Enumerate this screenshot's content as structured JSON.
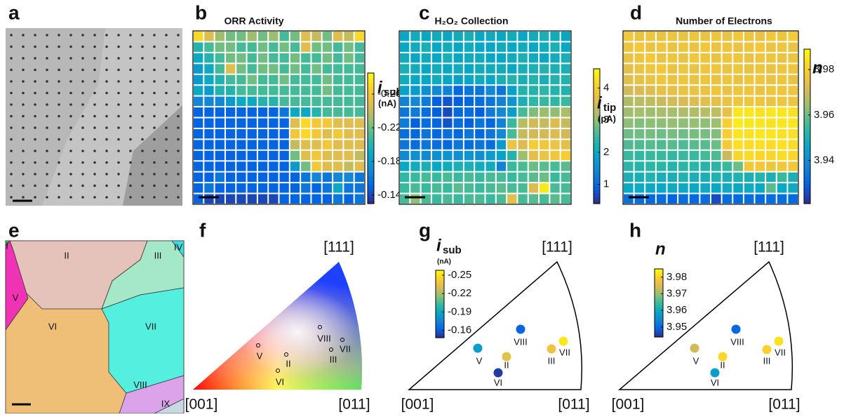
{
  "panel_labels": [
    "a",
    "b",
    "c",
    "d",
    "e",
    "f",
    "g",
    "h"
  ],
  "grain_map": {
    "labels": [
      "I",
      "II",
      "III",
      "IV",
      "V",
      "VI",
      "VII",
      "VIII",
      "IX"
    ]
  },
  "ipf_map": {
    "corners": [
      "[001]",
      "[011]",
      "[111]"
    ],
    "labels": [
      "V",
      "II",
      "VI",
      "VIII",
      "III",
      "VII"
    ]
  },
  "chart_data": [
    {
      "type": "heatmap",
      "title": "ORR Activity",
      "colorbar_symbol": "i",
      "colorbar_subscript": "sub",
      "colorbar_unit": "(nA)",
      "colormap": "parula",
      "clim": [
        -0.13,
        -0.285
      ],
      "cticks": [
        -0.26,
        -0.22,
        -0.18,
        -0.14
      ],
      "values": [
        [
          -0.27,
          -0.25,
          -0.23,
          -0.22,
          -0.22,
          -0.23,
          -0.22,
          -0.23,
          -0.21,
          -0.22,
          -0.25,
          -0.24,
          -0.22,
          -0.25,
          -0.24,
          -0.27
        ],
        [
          -0.2,
          -0.21,
          -0.22,
          -0.22,
          -0.21,
          -0.21,
          -0.22,
          -0.21,
          -0.22,
          -0.21,
          -0.25,
          -0.22,
          -0.22,
          -0.21,
          -0.22,
          -0.21
        ],
        [
          -0.19,
          -0.2,
          -0.21,
          -0.22,
          -0.22,
          -0.21,
          -0.22,
          -0.21,
          -0.21,
          -0.22,
          -0.21,
          -0.21,
          -0.22,
          -0.21,
          -0.22,
          -0.21
        ],
        [
          -0.18,
          -0.19,
          -0.21,
          -0.25,
          -0.22,
          -0.21,
          -0.22,
          -0.22,
          -0.21,
          -0.22,
          -0.21,
          -0.22,
          -0.21,
          -0.21,
          -0.21,
          -0.21
        ],
        [
          -0.18,
          -0.19,
          -0.2,
          -0.21,
          -0.21,
          -0.22,
          -0.21,
          -0.21,
          -0.22,
          -0.21,
          -0.21,
          -0.21,
          -0.22,
          -0.21,
          -0.21,
          -0.21
        ],
        [
          -0.19,
          -0.18,
          -0.2,
          -0.2,
          -0.21,
          -0.21,
          -0.21,
          -0.21,
          -0.21,
          -0.21,
          -0.21,
          -0.21,
          -0.22,
          -0.21,
          -0.21,
          -0.21
        ],
        [
          -0.17,
          -0.17,
          -0.17,
          -0.18,
          -0.19,
          -0.19,
          -0.2,
          -0.2,
          -0.21,
          -0.21,
          -0.21,
          -0.21,
          -0.21,
          -0.21,
          -0.21,
          -0.21
        ],
        [
          -0.15,
          -0.15,
          -0.15,
          -0.15,
          -0.15,
          -0.15,
          -0.15,
          -0.15,
          -0.16,
          -0.19,
          -0.19,
          -0.2,
          -0.21,
          -0.21,
          -0.21,
          -0.21
        ],
        [
          -0.15,
          -0.15,
          -0.15,
          -0.15,
          -0.15,
          -0.15,
          -0.15,
          -0.15,
          -0.15,
          -0.25,
          -0.27,
          -0.26,
          -0.26,
          -0.25,
          -0.25,
          -0.25
        ],
        [
          -0.15,
          -0.15,
          -0.15,
          -0.15,
          -0.15,
          -0.15,
          -0.15,
          -0.15,
          -0.15,
          -0.26,
          -0.27,
          -0.26,
          -0.25,
          -0.26,
          -0.25,
          -0.25
        ],
        [
          -0.15,
          -0.15,
          -0.15,
          -0.15,
          -0.15,
          -0.15,
          -0.15,
          -0.15,
          -0.15,
          -0.24,
          -0.25,
          -0.25,
          -0.26,
          -0.25,
          -0.25,
          -0.25
        ],
        [
          -0.15,
          -0.15,
          -0.15,
          -0.15,
          -0.15,
          -0.15,
          -0.15,
          -0.15,
          -0.15,
          -0.22,
          -0.25,
          -0.26,
          -0.25,
          -0.25,
          -0.25,
          -0.24
        ],
        [
          -0.15,
          -0.15,
          -0.15,
          -0.15,
          -0.15,
          -0.15,
          -0.15,
          -0.15,
          -0.15,
          -0.18,
          -0.22,
          -0.26,
          -0.25,
          -0.25,
          -0.24,
          -0.25
        ],
        [
          -0.15,
          -0.15,
          -0.16,
          -0.15,
          -0.15,
          -0.15,
          -0.15,
          -0.15,
          -0.15,
          -0.15,
          -0.16,
          -0.17,
          -0.16,
          -0.17,
          -0.17,
          -0.16
        ],
        [
          -0.15,
          -0.16,
          -0.15,
          -0.15,
          -0.15,
          -0.15,
          -0.15,
          -0.15,
          -0.15,
          -0.15,
          -0.16,
          -0.15,
          -0.16,
          -0.19,
          -0.16,
          -0.16
        ],
        [
          -0.15,
          -0.14,
          -0.14,
          -0.14,
          -0.14,
          -0.14,
          -0.14,
          -0.14,
          -0.15,
          -0.15,
          -0.15,
          -0.15,
          -0.15,
          -0.16,
          -0.15,
          -0.16
        ]
      ]
    },
    {
      "type": "heatmap",
      "title": "H₂O₂ Collection",
      "colorbar_symbol": "i",
      "colorbar_subscript": "tip",
      "colorbar_unit": "(pA)",
      "colormap": "parula",
      "clim": [
        0.4,
        4.6
      ],
      "cticks": [
        1,
        2,
        3,
        4
      ],
      "values": [
        [
          2.0,
          2.1,
          2.0,
          2.1,
          2.0,
          2.1,
          2.2,
          2.0,
          2.1,
          2.0,
          2.1,
          2.0,
          2.1,
          2.2,
          2.1,
          2.0
        ],
        [
          2.0,
          2.1,
          2.2,
          2.0,
          2.1,
          2.0,
          2.1,
          2.0,
          2.0,
          2.1,
          2.0,
          2.1,
          2.0,
          2.1,
          2.2,
          2.0
        ],
        [
          2.1,
          2.0,
          2.1,
          2.0,
          2.2,
          2.0,
          2.1,
          2.1,
          2.0,
          2.0,
          2.1,
          2.2,
          2.1,
          2.0,
          2.1,
          2.2
        ],
        [
          2.2,
          2.1,
          2.0,
          2.1,
          2.0,
          2.1,
          2.0,
          2.1,
          2.1,
          2.1,
          2.0,
          2.2,
          2.2,
          2.3,
          2.2,
          2.2
        ],
        [
          2.1,
          2.0,
          2.0,
          2.1,
          2.0,
          1.9,
          2.0,
          2.1,
          2.0,
          2.2,
          2.3,
          2.2,
          2.3,
          2.2,
          2.3,
          2.3
        ],
        [
          1.9,
          1.8,
          1.6,
          1.5,
          1.4,
          1.0,
          1.2,
          1.2,
          1.5,
          1.2,
          1.9,
          2.3,
          2.3,
          2.4,
          2.3,
          2.3
        ],
        [
          1.4,
          1.5,
          1.3,
          0.9,
          0.8,
          0.9,
          1.0,
          1.1,
          1.2,
          1.4,
          1.7,
          2.2,
          2.4,
          2.5,
          2.4,
          2.5
        ],
        [
          1.2,
          1.3,
          1.1,
          0.9,
          0.7,
          1.0,
          1.1,
          0.9,
          1.3,
          1.5,
          1.8,
          2.6,
          2.9,
          3.1,
          3.0,
          3.2
        ],
        [
          1.3,
          0.9,
          1.1,
          1.0,
          0.8,
          1.1,
          0.9,
          1.2,
          1.0,
          1.4,
          2.5,
          3.3,
          3.5,
          3.4,
          3.6,
          3.4
        ],
        [
          1.1,
          1.0,
          1.2,
          1.0,
          1.1,
          1.0,
          1.2,
          1.0,
          1.2,
          1.5,
          2.6,
          3.4,
          3.5,
          3.5,
          3.6,
          3.5
        ],
        [
          1.2,
          1.1,
          1.2,
          1.1,
          1.0,
          1.2,
          1.1,
          1.2,
          1.1,
          1.8,
          3.8,
          3.6,
          4.0,
          3.9,
          3.8,
          3.7
        ],
        [
          1.5,
          1.6,
          1.5,
          1.6,
          1.7,
          1.6,
          1.7,
          1.6,
          1.8,
          1.9,
          2.3,
          3.1,
          3.7,
          3.8,
          3.9,
          4.0
        ],
        [
          2.0,
          2.1,
          2.2,
          2.0,
          2.1,
          2.2,
          2.2,
          2.1,
          2.1,
          1.4,
          2.5,
          2.6,
          2.8,
          2.7,
          2.6,
          2.7
        ],
        [
          2.4,
          2.5,
          2.6,
          2.5,
          2.6,
          2.5,
          2.6,
          2.5,
          2.6,
          2.6,
          2.5,
          2.6,
          2.7,
          2.8,
          2.5,
          2.6
        ],
        [
          2.5,
          2.6,
          2.5,
          2.6,
          2.5,
          2.7,
          2.6,
          2.5,
          2.6,
          2.7,
          2.6,
          2.6,
          3.6,
          4.4,
          2.6,
          2.6
        ],
        [
          2.6,
          3.0,
          2.6,
          2.5,
          2.6,
          2.5,
          2.6,
          2.6,
          2.5,
          2.6,
          3.7,
          2.6,
          2.7,
          2.6,
          2.7,
          2.6
        ]
      ]
    },
    {
      "type": "heatmap",
      "title": "Number of Electrons",
      "colorbar_symbol": "n",
      "colormap": "parula",
      "clim": [
        3.921,
        3.989
      ],
      "cticks": [
        3.94,
        3.96,
        3.98
      ],
      "values": [
        [
          3.978,
          3.976,
          3.977,
          3.976,
          3.977,
          3.976,
          3.977,
          3.976,
          3.977,
          3.976,
          3.978,
          3.977,
          3.976,
          3.978,
          3.977,
          3.979
        ],
        [
          3.977,
          3.978,
          3.976,
          3.977,
          3.976,
          3.977,
          3.976,
          3.978,
          3.976,
          3.977,
          3.976,
          3.977,
          3.978,
          3.976,
          3.977,
          3.976
        ],
        [
          3.976,
          3.977,
          3.978,
          3.976,
          3.977,
          3.976,
          3.978,
          3.977,
          3.976,
          3.977,
          3.977,
          3.976,
          3.977,
          3.977,
          3.976,
          3.977
        ],
        [
          3.975,
          3.976,
          3.977,
          3.978,
          3.976,
          3.977,
          3.976,
          3.977,
          3.977,
          3.976,
          3.977,
          3.976,
          3.977,
          3.976,
          3.977,
          3.977
        ],
        [
          3.974,
          3.975,
          3.976,
          3.977,
          3.976,
          3.977,
          3.976,
          3.977,
          3.976,
          3.977,
          3.976,
          3.977,
          3.977,
          3.976,
          3.977,
          3.976
        ],
        [
          3.971,
          3.972,
          3.973,
          3.975,
          3.975,
          3.976,
          3.976,
          3.976,
          3.977,
          3.976,
          3.977,
          3.977,
          3.976,
          3.977,
          3.977,
          3.977
        ],
        [
          3.967,
          3.968,
          3.969,
          3.97,
          3.971,
          3.972,
          3.973,
          3.974,
          3.975,
          3.976,
          3.977,
          3.977,
          3.977,
          3.976,
          3.977,
          3.977
        ],
        [
          3.965,
          3.966,
          3.965,
          3.966,
          3.966,
          3.967,
          3.967,
          3.968,
          3.969,
          3.975,
          3.985,
          3.985,
          3.984,
          3.985,
          3.985,
          3.984
        ],
        [
          3.963,
          3.962,
          3.963,
          3.963,
          3.964,
          3.963,
          3.964,
          3.963,
          3.965,
          3.98,
          3.986,
          3.985,
          3.985,
          3.984,
          3.985,
          3.985
        ],
        [
          3.96,
          3.96,
          3.961,
          3.96,
          3.961,
          3.96,
          3.961,
          3.961,
          3.962,
          3.98,
          3.985,
          3.984,
          3.985,
          3.985,
          3.984,
          3.984
        ],
        [
          3.957,
          3.957,
          3.958,
          3.957,
          3.958,
          3.957,
          3.958,
          3.958,
          3.96,
          3.979,
          3.984,
          3.983,
          3.984,
          3.983,
          3.984,
          3.983
        ],
        [
          3.955,
          3.954,
          3.955,
          3.955,
          3.954,
          3.955,
          3.955,
          3.956,
          3.957,
          3.97,
          3.982,
          3.983,
          3.982,
          3.982,
          3.983,
          3.982
        ],
        [
          3.953,
          3.952,
          3.953,
          3.953,
          3.952,
          3.953,
          3.953,
          3.952,
          3.953,
          3.955,
          3.96,
          3.978,
          3.978,
          3.977,
          3.978,
          3.978
        ],
        [
          3.95,
          3.95,
          3.951,
          3.95,
          3.95,
          3.951,
          3.95,
          3.95,
          3.951,
          3.95,
          3.951,
          3.95,
          3.952,
          3.95,
          3.955,
          3.95
        ],
        [
          3.947,
          3.948,
          3.947,
          3.947,
          3.948,
          3.947,
          3.947,
          3.948,
          3.947,
          3.948,
          3.947,
          3.948,
          3.947,
          3.958,
          3.947,
          3.948
        ],
        [
          3.933,
          3.932,
          3.931,
          3.932,
          3.93,
          3.932,
          3.931,
          3.932,
          3.926,
          3.932,
          3.931,
          3.932,
          3.931,
          3.932,
          3.932,
          3.931
        ]
      ]
    },
    {
      "type": "scatter",
      "colorbar_symbol": "i",
      "colorbar_subscript": "sub",
      "colorbar_unit": "(nA)",
      "colormap": "parula",
      "clim": [
        -0.148,
        -0.258
      ],
      "cticks": [
        -0.25,
        -0.22,
        -0.19,
        -0.16
      ],
      "corners": [
        "[001]",
        "[011]",
        "[111]"
      ],
      "labels": [
        "VIII",
        "V",
        "II",
        "VI",
        "III",
        "VII"
      ],
      "values": [
        -0.163,
        -0.185,
        -0.235,
        -0.152,
        -0.238,
        -0.252
      ]
    },
    {
      "type": "scatter",
      "colorbar_symbol": "n",
      "colormap": "parula",
      "clim": [
        3.944,
        3.985
      ],
      "cticks": [
        3.98,
        3.97,
        3.96,
        3.95
      ],
      "corners": [
        "[001]",
        "[011]",
        "[111]"
      ],
      "labels": [
        "VIII",
        "V",
        "II",
        "VI",
        "III",
        "VII"
      ],
      "values": [
        3.95,
        3.974,
        3.981,
        3.958,
        3.98,
        3.982
      ]
    }
  ]
}
